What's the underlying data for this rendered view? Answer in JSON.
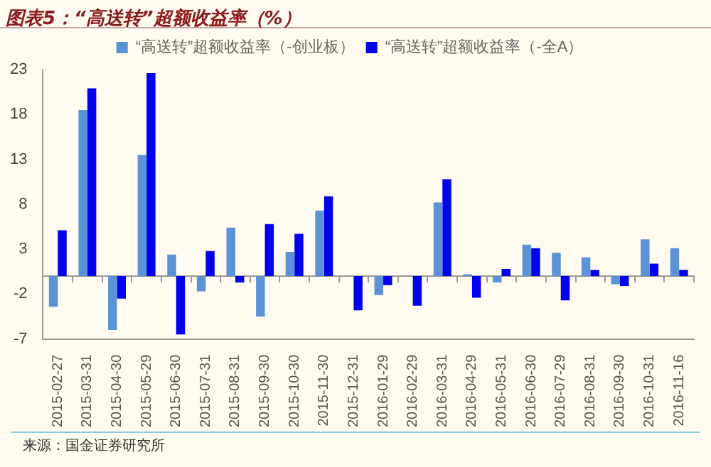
{
  "chart_data": {
    "type": "bar",
    "title": "图表5：“高送转”超额收益率（%）",
    "categories": [
      "2015-02-27",
      "2015-03-31",
      "2015-04-30",
      "2015-05-29",
      "2015-06-30",
      "2015-07-31",
      "2015-08-31",
      "2015-09-30",
      "2015-10-30",
      "2015-11-30",
      "2015-12-31",
      "2016-01-29",
      "2016-02-29",
      "2016-03-31",
      "2016-04-29",
      "2016-05-31",
      "2016-06-30",
      "2016-07-29",
      "2016-08-31",
      "2016-09-30",
      "2016-10-31",
      "2016-11-16"
    ],
    "series": [
      {
        "name": "“高送转”超额收益率（-创业板）",
        "color": "#5b93d6",
        "values": [
          -3.4,
          18.5,
          -6,
          13.5,
          2.4,
          -1.7,
          5.4,
          -4.5,
          2.7,
          7.3,
          0,
          -2.1,
          0,
          8.2,
          0.2,
          -0.7,
          3.5,
          2.6,
          2.1,
          -0.9,
          4.1,
          3.1
        ]
      },
      {
        "name": "“高送转”超额收益率（-全A）",
        "color": "#0000ee",
        "values": [
          5.1,
          20.9,
          -2.5,
          22.6,
          -6.5,
          2.8,
          -0.7,
          5.8,
          4.7,
          8.9,
          -3.8,
          -1.0,
          -3.3,
          10.8,
          -2.4,
          0.8,
          3.1,
          -2.7,
          0.7,
          -1.1,
          1.4,
          0.7
        ]
      }
    ],
    "ylim": [
      -7,
      23
    ],
    "yticks": [
      -7,
      -2,
      3,
      8,
      13,
      18,
      23
    ],
    "grid": false,
    "legend": "top",
    "annotations": [
      "来源：国金证券研究所"
    ]
  }
}
